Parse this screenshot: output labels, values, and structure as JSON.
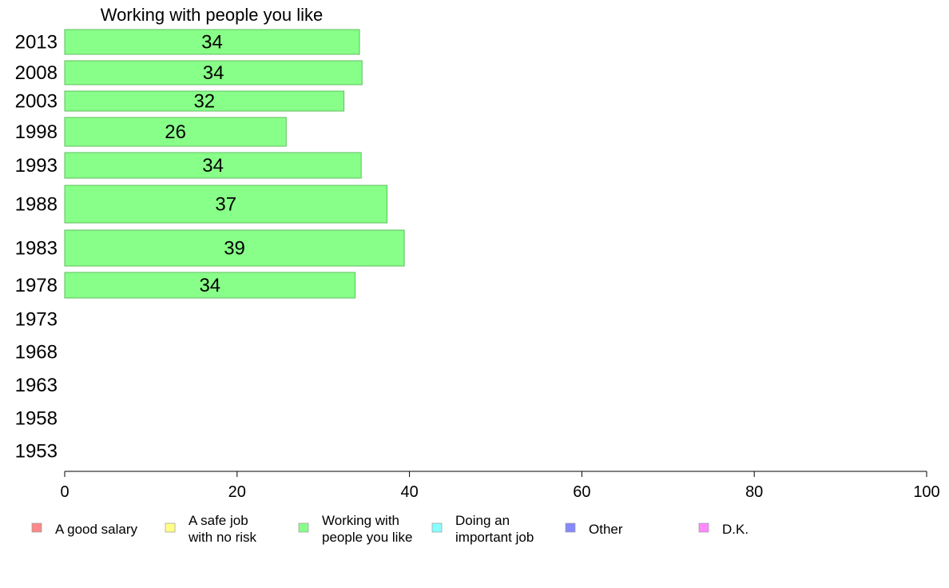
{
  "chart_data": {
    "type": "bar",
    "orientation": "horizontal",
    "title": "Working with people you like",
    "categories": [
      "2013",
      "2008",
      "2003",
      "1998",
      "1993",
      "1988",
      "1983",
      "1978",
      "1973",
      "1968",
      "1963",
      "1958",
      "1953"
    ],
    "values": [
      34,
      34,
      32,
      26,
      34,
      37,
      39,
      34,
      null,
      null,
      null,
      null,
      null
    ],
    "bar_values_exact": [
      34.2,
      34.5,
      32.4,
      25.7,
      34.4,
      37.4,
      39.4,
      33.7,
      null,
      null,
      null,
      null,
      null
    ],
    "data_labels": [
      "34",
      "34",
      "32",
      "26",
      "34",
      "37",
      "39",
      "34",
      "",
      "",
      "",
      "",
      ""
    ],
    "xlim": [
      0,
      100
    ],
    "x_ticks": [
      0,
      20,
      40,
      60,
      80,
      100
    ],
    "xlabel": "",
    "ylabel": "",
    "grid": false,
    "bar_color": "#88ff88",
    "bar_stroke": "#5fbf5f",
    "legend": {
      "placement": "bottom",
      "entries": [
        {
          "lines": [
            "A good salary"
          ],
          "color": "#ff8888"
        },
        {
          "lines": [
            "A safe job",
            "with no risk"
          ],
          "color": "#ffff88"
        },
        {
          "lines": [
            "Working with",
            "people you like"
          ],
          "color": "#88ff88"
        },
        {
          "lines": [
            "Doing an",
            "important job"
          ],
          "color": "#88ffff"
        },
        {
          "lines": [
            "Other"
          ],
          "color": "#8888ff"
        },
        {
          "lines": [
            "D.K."
          ],
          "color": "#ff88ff"
        }
      ]
    }
  }
}
